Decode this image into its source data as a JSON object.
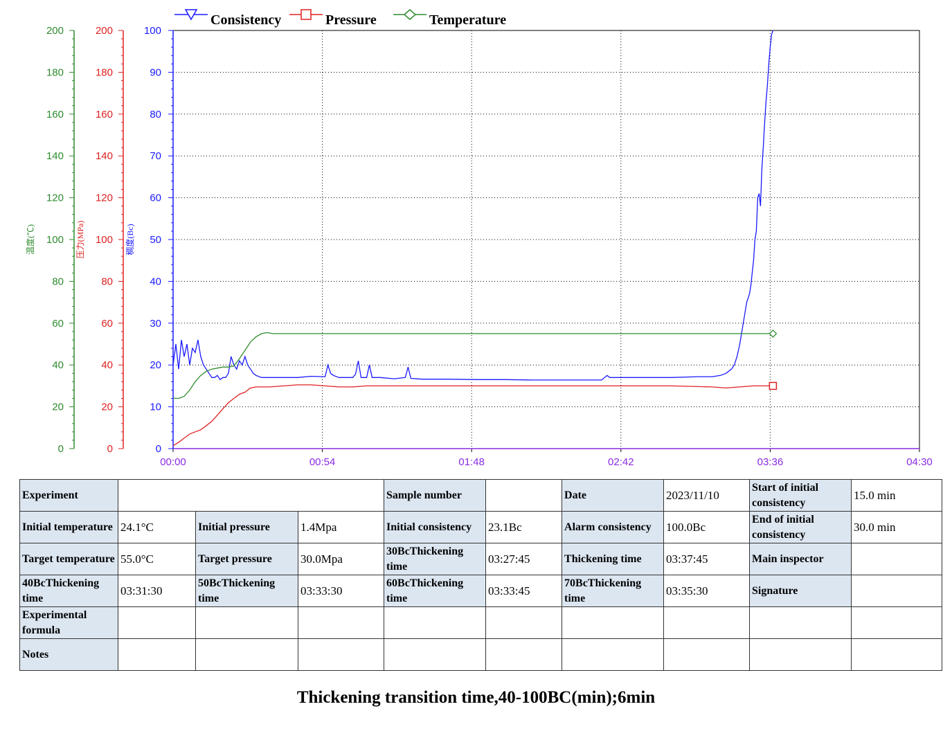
{
  "chart_data": {
    "type": "line",
    "x_ticks": [
      "00:00",
      "00:54",
      "01:48",
      "02:42",
      "03:36",
      "04:30"
    ],
    "x_unit": "minutes",
    "xlim": [
      0,
      270
    ],
    "y_axes": {
      "temperature": {
        "name": "温度(℃)",
        "range": [
          0,
          200
        ],
        "ticks": [
          0,
          20,
          40,
          60,
          80,
          100,
          120,
          140,
          160,
          180,
          200
        ],
        "color": "#2e8b2e"
      },
      "pressure": {
        "name": "压力(MPa)",
        "range": [
          0,
          200
        ],
        "ticks": [
          0,
          20,
          40,
          60,
          80,
          100,
          120,
          140,
          160,
          180,
          200
        ],
        "color": "#e02020"
      },
      "consistency": {
        "name": "稠度(Bc)",
        "range": [
          0,
          100
        ],
        "ticks": [
          0,
          10,
          20,
          30,
          40,
          50,
          60,
          70,
          80,
          90,
          100
        ],
        "color": "#1a1aff"
      }
    },
    "grid": true,
    "legend_position": "top",
    "series": [
      {
        "name": "Consistency",
        "axis": "consistency",
        "color": "#1a1aff",
        "marker": "triangle-down",
        "x": [
          0,
          1,
          2,
          3,
          4,
          5,
          6,
          7,
          8,
          9,
          10,
          11,
          12,
          13,
          14,
          15,
          16,
          17,
          18,
          19,
          20,
          21,
          22,
          23,
          24,
          25,
          26,
          27,
          28,
          29,
          30,
          32,
          34,
          36,
          40,
          45,
          50,
          55,
          56,
          57,
          58,
          60,
          65,
          66,
          67,
          68,
          70,
          71,
          72,
          75,
          80,
          84,
          85,
          86,
          90,
          100,
          110,
          120,
          130,
          140,
          150,
          155,
          157,
          158,
          160,
          170,
          180,
          190,
          195,
          198,
          200,
          202,
          203,
          204,
          205,
          205.5,
          206,
          206.5,
          207,
          207.5,
          208,
          208.5,
          209,
          209.5,
          210,
          210.5,
          211,
          211.5,
          212,
          212.5,
          213,
          213.5,
          214,
          214.5,
          215,
          215.5,
          216,
          216.5,
          217
        ],
        "y": [
          20,
          25,
          19,
          26,
          22,
          25,
          20,
          24,
          23,
          26,
          22,
          20,
          19,
          18,
          17,
          17,
          17.5,
          16.5,
          17,
          17,
          18,
          22,
          20,
          19,
          21,
          20,
          22,
          20,
          19,
          18,
          17.5,
          17,
          17,
          17,
          17,
          17,
          17.3,
          17.2,
          20,
          18,
          17.5,
          17,
          17,
          17.8,
          21,
          17,
          17,
          20,
          17,
          17,
          16.7,
          17,
          19.5,
          16.8,
          16.6,
          16.6,
          16.5,
          16.5,
          16.4,
          16.4,
          16.4,
          16.4,
          17.5,
          17,
          17,
          17,
          17,
          17.2,
          17.2,
          17.5,
          18,
          19,
          20,
          22,
          25,
          27,
          29,
          31,
          33,
          35,
          36,
          37,
          39,
          42,
          45,
          50,
          52,
          60,
          61,
          58,
          67,
          72,
          78,
          83,
          87,
          92,
          96,
          99,
          100
        ]
      },
      {
        "name": "Pressure",
        "axis": "pressure",
        "color": "#e02020",
        "marker": "square",
        "x": [
          0,
          2,
          4,
          6,
          8,
          10,
          12,
          14,
          16,
          18,
          20,
          22,
          24,
          26,
          28,
          30,
          35,
          40,
          45,
          50,
          55,
          60,
          65,
          70,
          80,
          90,
          100,
          110,
          120,
          140,
          160,
          180,
          195,
          200,
          205,
          210,
          217
        ],
        "y": [
          1.4,
          3,
          5,
          7,
          8,
          9,
          11,
          13,
          16,
          19,
          22,
          24,
          26,
          27,
          29,
          29.5,
          29.5,
          30,
          30.5,
          30.5,
          30,
          29.5,
          29.5,
          30,
          30,
          30,
          30,
          30,
          30,
          30,
          30,
          30,
          29.5,
          29,
          29.5,
          30,
          30
        ]
      },
      {
        "name": "Temperature",
        "axis": "temperature",
        "color": "#2e8b2e",
        "marker": "diamond",
        "x": [
          0,
          2,
          4,
          6,
          8,
          10,
          12,
          14,
          16,
          18,
          20,
          22,
          24,
          26,
          28,
          30,
          32,
          34,
          36,
          40,
          50,
          60,
          80,
          100,
          120,
          140,
          160,
          180,
          200,
          210,
          217
        ],
        "y": [
          24.1,
          24,
          25,
          28,
          32,
          35,
          37,
          38,
          38.5,
          39,
          39,
          39.5,
          43,
          47,
          51,
          53.5,
          55,
          55.5,
          55,
          55,
          55,
          55,
          55,
          55,
          55,
          55,
          55,
          55,
          55,
          55,
          55
        ]
      }
    ]
  },
  "legend": [
    "Consistency",
    "Pressure",
    "Temperature"
  ],
  "table": {
    "rows": [
      [
        {
          "t": "Experiment",
          "h": 1
        },
        {
          "t": "",
          "cs": 3
        },
        {
          "t": "Sample number",
          "h": 1
        },
        {
          "t": ""
        },
        {
          "t": "Date",
          "h": 1
        },
        {
          "t": "2023/11/10"
        },
        {
          "t": "Start of initial consistency",
          "h": 1
        },
        {
          "t": "15.0 min"
        }
      ],
      [
        {
          "t": "Initial temperature",
          "h": 1
        },
        {
          "t": "24.1°C"
        },
        {
          "t": "Initial pressure",
          "h": 1
        },
        {
          "t": "1.4Mpa"
        },
        {
          "t": "Initial consistency",
          "h": 1
        },
        {
          "t": "23.1Bc"
        },
        {
          "t": "Alarm consistency",
          "h": 1
        },
        {
          "t": "100.0Bc"
        },
        {
          "t": "End of initial consistency",
          "h": 1
        },
        {
          "t": "30.0 min"
        }
      ],
      [
        {
          "t": "Target temperature",
          "h": 1
        },
        {
          "t": "55.0°C"
        },
        {
          "t": "Target pressure",
          "h": 1
        },
        {
          "t": "30.0Mpa"
        },
        {
          "t": "30BcThickening time",
          "h": 1
        },
        {
          "t": "03:27:45"
        },
        {
          "t": "Thickening time",
          "h": 1
        },
        {
          "t": "03:37:45"
        },
        {
          "t": "Main inspector",
          "h": 1
        },
        {
          "t": ""
        }
      ],
      [
        {
          "t": "40BcThickening time",
          "h": 1
        },
        {
          "t": "03:31:30"
        },
        {
          "t": "50BcThickening time",
          "h": 1
        },
        {
          "t": "03:33:30"
        },
        {
          "t": "60BcThickening time",
          "h": 1
        },
        {
          "t": "03:33:45"
        },
        {
          "t": "70BcThickening time",
          "h": 1
        },
        {
          "t": "03:35:30"
        },
        {
          "t": "Signature",
          "h": 1
        },
        {
          "t": ""
        }
      ],
      [
        {
          "t": "Experimental formula",
          "h": 1
        },
        {
          "t": ""
        },
        {
          "t": ""
        },
        {
          "t": ""
        },
        {
          "t": ""
        },
        {
          "t": ""
        },
        {
          "t": ""
        },
        {
          "t": ""
        },
        {
          "t": ""
        },
        {
          "t": ""
        }
      ],
      [
        {
          "t": "Notes",
          "h": 1
        },
        {
          "t": ""
        },
        {
          "t": ""
        },
        {
          "t": ""
        },
        {
          "t": ""
        },
        {
          "t": ""
        },
        {
          "t": ""
        },
        {
          "t": ""
        },
        {
          "t": ""
        },
        {
          "t": ""
        }
      ]
    ]
  },
  "caption": "Thickening transition time,40-100BC(min);6min"
}
